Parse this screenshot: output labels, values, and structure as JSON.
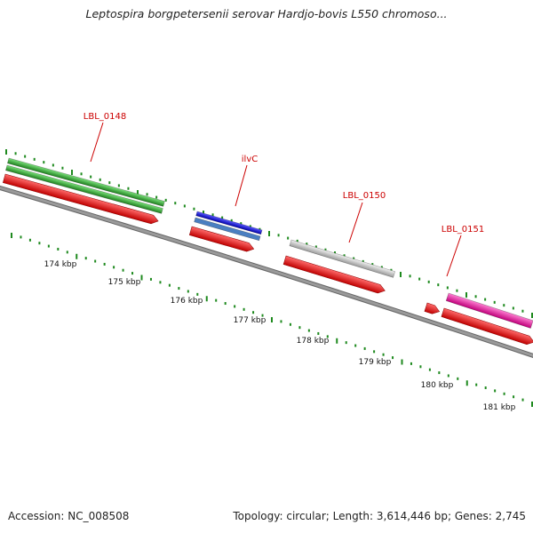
{
  "title": "Leptospira borgpetersenii serovar Hardjo-bovis L550 chromoso...",
  "footer": {
    "accession": "Accession: NC_008508",
    "summary": "Topology: circular; Length: 3,614,446 bp; Genes: 2,745"
  },
  "colors": {
    "backbone": "#8a8a8a",
    "tick": "#1f8a1f",
    "label": "#cc0000",
    "cds": "#ee1111",
    "gene_green": "#33bb33",
    "gene_blue": "#1111ee",
    "gene_gray": "#c8c8c8",
    "gene_magenta": "#ee22aa"
  },
  "axis_labels": [
    "174 kbp",
    "175 kbp",
    "176 kbp",
    "177 kbp",
    "178 kbp",
    "179 kbp",
    "180 kbp",
    "181 kbp"
  ],
  "gene_labels": [
    "LBL_0148",
    "ilvC",
    "LBL_0150",
    "LBL_0151"
  ]
}
